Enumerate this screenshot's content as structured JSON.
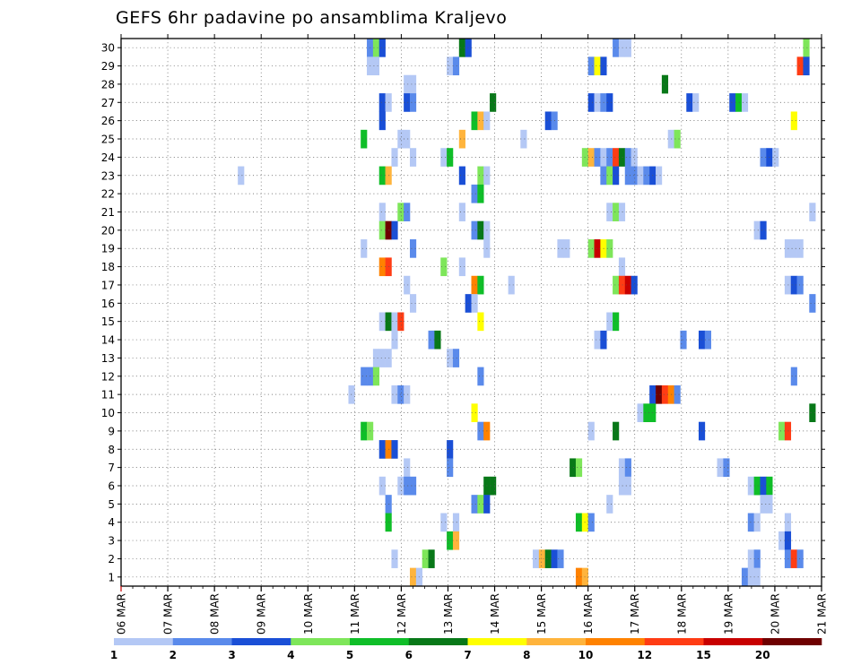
{
  "chart_data": {
    "type": "heatmap",
    "title": "GEFS 6hr padavine po ansamblima Kraljevo",
    "y_ticks": [
      "1",
      "2",
      "3",
      "4",
      "5",
      "6",
      "7",
      "8",
      "9",
      "10",
      "11",
      "12",
      "13",
      "14",
      "15",
      "16",
      "17",
      "18",
      "19",
      "20",
      "21",
      "22",
      "23",
      "24",
      "25",
      "26",
      "27",
      "28",
      "29",
      "30"
    ],
    "x_ticks": [
      "06 MAR",
      "07 MAR",
      "08 MAR",
      "09 MAR",
      "10 MAR",
      "11 MAR",
      "12 MAR",
      "13 MAR",
      "14 MAR",
      "15 MAR",
      "16 MAR",
      "17 MAR",
      "18 MAR",
      "19 MAR",
      "20 MAR",
      "21 MAR"
    ],
    "legend": {
      "labels": [
        "1",
        "2",
        "3",
        "4",
        "5",
        "6",
        "7",
        "8",
        "10",
        "12",
        "15",
        "20"
      ],
      "colors": [
        "#b4c8f5",
        "#5a8aeb",
        "#1a4fd6",
        "#7ee65a",
        "#0fbe28",
        "#087818",
        "#ffff00",
        "#ffb43c",
        "#ff8200",
        "#ff3c14",
        "#c80000",
        "#6e0000"
      ]
    },
    "grid": true,
    "cells": [
      [
        30,
        40,
        2
      ],
      [
        30,
        41,
        4
      ],
      [
        30,
        42,
        3
      ],
      [
        30,
        55,
        6
      ],
      [
        30,
        56,
        3
      ],
      [
        30,
        80,
        2
      ],
      [
        30,
        81,
        1
      ],
      [
        30,
        82,
        1
      ],
      [
        30,
        111,
        4
      ],
      [
        29,
        40,
        1
      ],
      [
        29,
        41,
        1
      ],
      [
        29,
        53,
        1
      ],
      [
        29,
        54,
        2
      ],
      [
        29,
        76,
        2
      ],
      [
        29,
        77,
        7
      ],
      [
        29,
        78,
        3
      ],
      [
        29,
        110,
        10
      ],
      [
        29,
        111,
        3
      ],
      [
        28,
        46,
        1
      ],
      [
        28,
        47,
        1
      ],
      [
        28,
        88,
        6
      ],
      [
        27,
        42,
        3
      ],
      [
        27,
        43,
        1
      ],
      [
        27,
        46,
        3
      ],
      [
        27,
        47,
        2
      ],
      [
        27,
        60,
        6
      ],
      [
        27,
        76,
        3
      ],
      [
        27,
        77,
        1
      ],
      [
        27,
        78,
        2
      ],
      [
        27,
        79,
        3
      ],
      [
        27,
        92,
        3
      ],
      [
        27,
        93,
        1
      ],
      [
        27,
        99,
        3
      ],
      [
        27,
        100,
        5
      ],
      [
        27,
        101,
        1
      ],
      [
        26,
        42,
        3
      ],
      [
        26,
        57,
        5
      ],
      [
        26,
        58,
        8
      ],
      [
        26,
        59,
        1
      ],
      [
        26,
        69,
        3
      ],
      [
        26,
        70,
        2
      ],
      [
        26,
        109,
        7
      ],
      [
        25,
        39,
        5
      ],
      [
        25,
        45,
        1
      ],
      [
        25,
        46,
        1
      ],
      [
        25,
        55,
        8
      ],
      [
        25,
        65,
        1
      ],
      [
        25,
        89,
        1
      ],
      [
        25,
        90,
        4
      ],
      [
        24,
        44,
        1
      ],
      [
        24,
        47,
        1
      ],
      [
        24,
        52,
        1
      ],
      [
        24,
        53,
        5
      ],
      [
        24,
        75,
        4
      ],
      [
        24,
        76,
        8
      ],
      [
        24,
        77,
        2
      ],
      [
        24,
        78,
        1
      ],
      [
        24,
        79,
        2
      ],
      [
        24,
        80,
        10
      ],
      [
        24,
        81,
        6
      ],
      [
        24,
        82,
        2
      ],
      [
        24,
        83,
        1
      ],
      [
        24,
        104,
        2
      ],
      [
        24,
        105,
        3
      ],
      [
        24,
        106,
        1
      ],
      [
        23,
        19,
        1
      ],
      [
        23,
        42,
        5
      ],
      [
        23,
        43,
        8
      ],
      [
        23,
        55,
        3
      ],
      [
        23,
        58,
        4
      ],
      [
        23,
        59,
        1
      ],
      [
        23,
        78,
        2
      ],
      [
        23,
        79,
        4
      ],
      [
        23,
        80,
        3
      ],
      [
        23,
        82,
        2
      ],
      [
        23,
        83,
        2
      ],
      [
        23,
        84,
        1
      ],
      [
        23,
        85,
        2
      ],
      [
        23,
        86,
        3
      ],
      [
        23,
        87,
        1
      ],
      [
        22,
        57,
        2
      ],
      [
        22,
        58,
        5
      ],
      [
        21,
        42,
        1
      ],
      [
        21,
        45,
        4
      ],
      [
        21,
        46,
        2
      ],
      [
        21,
        55,
        1
      ],
      [
        21,
        79,
        1
      ],
      [
        21,
        80,
        4
      ],
      [
        21,
        81,
        1
      ],
      [
        21,
        112,
        1
      ],
      [
        20,
        42,
        4
      ],
      [
        20,
        43,
        12
      ],
      [
        20,
        44,
        3
      ],
      [
        20,
        57,
        2
      ],
      [
        20,
        58,
        6
      ],
      [
        20,
        59,
        1
      ],
      [
        20,
        103,
        1
      ],
      [
        20,
        104,
        3
      ],
      [
        19,
        39,
        1
      ],
      [
        19,
        47,
        2
      ],
      [
        19,
        59,
        1
      ],
      [
        19,
        71,
        1
      ],
      [
        19,
        72,
        1
      ],
      [
        19,
        76,
        4
      ],
      [
        19,
        77,
        11
      ],
      [
        19,
        78,
        7
      ],
      [
        19,
        79,
        4
      ],
      [
        19,
        108,
        1
      ],
      [
        19,
        109,
        1
      ],
      [
        19,
        110,
        1
      ],
      [
        18,
        42,
        9
      ],
      [
        18,
        43,
        10
      ],
      [
        18,
        52,
        4
      ],
      [
        18,
        55,
        1
      ],
      [
        18,
        81,
        1
      ],
      [
        17,
        46,
        1
      ],
      [
        17,
        57,
        9
      ],
      [
        17,
        58,
        5
      ],
      [
        17,
        63,
        1
      ],
      [
        17,
        80,
        4
      ],
      [
        17,
        81,
        10
      ],
      [
        17,
        82,
        11
      ],
      [
        17,
        83,
        3
      ],
      [
        17,
        108,
        1
      ],
      [
        17,
        109,
        3
      ],
      [
        17,
        110,
        2
      ],
      [
        16,
        47,
        1
      ],
      [
        16,
        56,
        3
      ],
      [
        16,
        57,
        1
      ],
      [
        16,
        112,
        2
      ],
      [
        15,
        42,
        1
      ],
      [
        15,
        43,
        6
      ],
      [
        15,
        44,
        1
      ],
      [
        15,
        45,
        10
      ],
      [
        15,
        58,
        7
      ],
      [
        15,
        79,
        1
      ],
      [
        15,
        80,
        5
      ],
      [
        14,
        44,
        1
      ],
      [
        14,
        50,
        2
      ],
      [
        14,
        51,
        6
      ],
      [
        14,
        77,
        1
      ],
      [
        14,
        78,
        3
      ],
      [
        14,
        91,
        2
      ],
      [
        14,
        94,
        3
      ],
      [
        14,
        95,
        2
      ],
      [
        13,
        41,
        1
      ],
      [
        13,
        42,
        1
      ],
      [
        13,
        43,
        1
      ],
      [
        13,
        53,
        1
      ],
      [
        13,
        54,
        2
      ],
      [
        12,
        39,
        2
      ],
      [
        12,
        40,
        2
      ],
      [
        12,
        41,
        4
      ],
      [
        12,
        58,
        2
      ],
      [
        12,
        109,
        2
      ],
      [
        11,
        37,
        1
      ],
      [
        11,
        44,
        1
      ],
      [
        11,
        45,
        2
      ],
      [
        11,
        46,
        1
      ],
      [
        11,
        86,
        3
      ],
      [
        11,
        87,
        12
      ],
      [
        11,
        88,
        10
      ],
      [
        11,
        89,
        9
      ],
      [
        11,
        90,
        2
      ],
      [
        10,
        57,
        7
      ],
      [
        10,
        84,
        1
      ],
      [
        10,
        85,
        5
      ],
      [
        10,
        86,
        5
      ],
      [
        10,
        112,
        6
      ],
      [
        9,
        39,
        5
      ],
      [
        9,
        40,
        4
      ],
      [
        9,
        58,
        2
      ],
      [
        9,
        59,
        9
      ],
      [
        9,
        76,
        1
      ],
      [
        9,
        80,
        6
      ],
      [
        9,
        94,
        3
      ],
      [
        9,
        107,
        4
      ],
      [
        9,
        108,
        10
      ],
      [
        8,
        42,
        3
      ],
      [
        8,
        43,
        9
      ],
      [
        8,
        44,
        3
      ],
      [
        8,
        53,
        3
      ],
      [
        7,
        46,
        1
      ],
      [
        7,
        53,
        2
      ],
      [
        7,
        73,
        6
      ],
      [
        7,
        74,
        4
      ],
      [
        7,
        81,
        1
      ],
      [
        7,
        82,
        2
      ],
      [
        7,
        97,
        1
      ],
      [
        7,
        98,
        2
      ],
      [
        6,
        42,
        1
      ],
      [
        6,
        45,
        1
      ],
      [
        6,
        46,
        2
      ],
      [
        6,
        47,
        2
      ],
      [
        6,
        59,
        6
      ],
      [
        6,
        60,
        6
      ],
      [
        6,
        81,
        1
      ],
      [
        6,
        82,
        1
      ],
      [
        6,
        102,
        1
      ],
      [
        6,
        103,
        5
      ],
      [
        6,
        104,
        3
      ],
      [
        6,
        105,
        5
      ],
      [
        5,
        43,
        2
      ],
      [
        5,
        57,
        2
      ],
      [
        5,
        58,
        4
      ],
      [
        5,
        59,
        3
      ],
      [
        5,
        79,
        1
      ],
      [
        5,
        104,
        1
      ],
      [
        5,
        105,
        1
      ],
      [
        4,
        43,
        5
      ],
      [
        4,
        52,
        1
      ],
      [
        4,
        54,
        1
      ],
      [
        4,
        74,
        5
      ],
      [
        4,
        75,
        7
      ],
      [
        4,
        76,
        2
      ],
      [
        4,
        102,
        2
      ],
      [
        4,
        103,
        1
      ],
      [
        4,
        108,
        1
      ],
      [
        3,
        53,
        5
      ],
      [
        3,
        54,
        8
      ],
      [
        3,
        107,
        1
      ],
      [
        3,
        108,
        3
      ],
      [
        2,
        44,
        1
      ],
      [
        2,
        49,
        4
      ],
      [
        2,
        50,
        6
      ],
      [
        2,
        67,
        1
      ],
      [
        2,
        68,
        8
      ],
      [
        2,
        69,
        6
      ],
      [
        2,
        70,
        3
      ],
      [
        2,
        71,
        2
      ],
      [
        2,
        102,
        1
      ],
      [
        2,
        103,
        2
      ],
      [
        2,
        108,
        2
      ],
      [
        2,
        109,
        10
      ],
      [
        2,
        110,
        2
      ],
      [
        1,
        47,
        8
      ],
      [
        1,
        48,
        1
      ],
      [
        1,
        74,
        9
      ],
      [
        1,
        75,
        8
      ],
      [
        1,
        101,
        2
      ],
      [
        1,
        102,
        1
      ],
      [
        1,
        103,
        1
      ]
    ]
  }
}
